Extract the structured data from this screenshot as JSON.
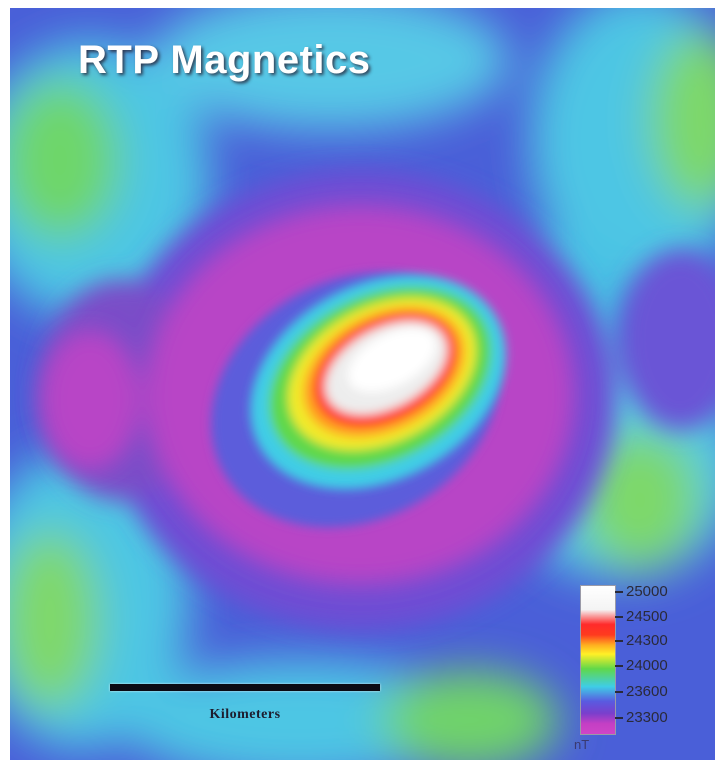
{
  "map": {
    "title": "RTP Magnetics",
    "scale_bar_label": "Kilometers",
    "legend": {
      "values": [
        "25000",
        "24500",
        "24300",
        "24000",
        "23600",
        "23300"
      ],
      "unit": "nT"
    },
    "colors": {
      "peak": "#ffffff",
      "high": "#ff2a2a",
      "mid_high": "#fff027",
      "mid": "#60d84a",
      "low": "#5a5ae0",
      "lowest": "#cf45c7",
      "background_cyan": "#52c8e8"
    }
  }
}
